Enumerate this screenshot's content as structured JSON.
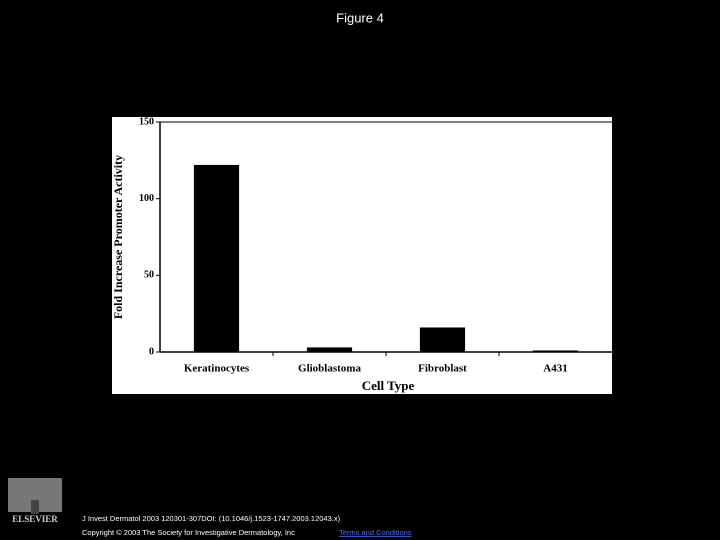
{
  "figure_title": "Figure 4",
  "chart_data": {
    "type": "bar",
    "x_label": "Cell Type",
    "y_label": "Fold Increase Promoter Activity",
    "categories": [
      "Keratinocytes",
      "Glioblastoma",
      "Fibroblast",
      "A431"
    ],
    "values": [
      122,
      3,
      16,
      1
    ],
    "color": "#000000",
    "ylim": [
      0,
      150
    ],
    "yticks": [
      0,
      50,
      100,
      150
    ],
    "grid": false
  },
  "footer": {
    "logo_text": "ELSEVIER",
    "citation": "J Invest Dermatol 2003 120301-307DOI: (10.1046/j.1523-1747.2003.12043.x)",
    "copyright": "Copyright © 2003 The Society for Investigative Dermatology, Inc",
    "link": "Terms and Conditions"
  }
}
